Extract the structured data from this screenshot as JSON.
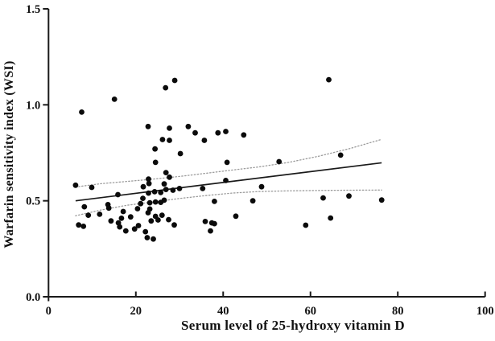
{
  "chart_data": {
    "type": "scatter",
    "title": "",
    "xlabel": "Serum level of 25-hydroxy vitamin D",
    "ylabel": "Warfarin sensitivity index (WSI)",
    "xlim": [
      0,
      100
    ],
    "ylim": [
      0.0,
      1.5
    ],
    "xticks": [
      0,
      20,
      40,
      60,
      80,
      100
    ],
    "xtick_labels": [
      "0",
      "20",
      "40",
      "60",
      "80",
      "100"
    ],
    "yticks": [
      0.0,
      0.5,
      1.0,
      1.5
    ],
    "ytick_labels": [
      "0.0",
      "0.5",
      "1.0",
      "1.5"
    ],
    "grid": false,
    "legend": "none",
    "marker": "filled-black-circle",
    "points": [
      [
        7.6,
        0.962
      ],
      [
        15.1,
        1.029
      ],
      [
        26.8,
        1.089
      ],
      [
        28.9,
        1.127
      ],
      [
        64.2,
        1.131
      ],
      [
        22.8,
        0.887
      ],
      [
        27.7,
        0.878
      ],
      [
        32.0,
        0.887
      ],
      [
        33.6,
        0.854
      ],
      [
        26.1,
        0.819
      ],
      [
        27.7,
        0.815
      ],
      [
        38.8,
        0.854
      ],
      [
        40.6,
        0.861
      ],
      [
        44.7,
        0.843
      ],
      [
        35.7,
        0.815
      ],
      [
        24.4,
        0.77
      ],
      [
        30.2,
        0.746
      ],
      [
        66.9,
        0.738
      ],
      [
        24.5,
        0.7
      ],
      [
        40.9,
        0.7
      ],
      [
        52.8,
        0.704
      ],
      [
        26.9,
        0.647
      ],
      [
        27.7,
        0.623
      ],
      [
        22.9,
        0.613
      ],
      [
        23.0,
        0.59
      ],
      [
        26.5,
        0.588
      ],
      [
        40.6,
        0.606
      ],
      [
        6.2,
        0.581
      ],
      [
        9.9,
        0.57
      ],
      [
        35.3,
        0.564
      ],
      [
        48.8,
        0.573
      ],
      [
        21.7,
        0.573
      ],
      [
        22.9,
        0.54
      ],
      [
        24.3,
        0.547
      ],
      [
        25.7,
        0.543
      ],
      [
        26.9,
        0.559
      ],
      [
        28.5,
        0.555
      ],
      [
        30.0,
        0.564
      ],
      [
        15.9,
        0.532
      ],
      [
        21.6,
        0.513
      ],
      [
        21.1,
        0.485
      ],
      [
        24.5,
        0.494
      ],
      [
        25.7,
        0.492
      ],
      [
        26.5,
        0.503
      ],
      [
        23.2,
        0.49
      ],
      [
        8.2,
        0.469
      ],
      [
        13.6,
        0.48
      ],
      [
        13.8,
        0.462
      ],
      [
        17.1,
        0.444
      ],
      [
        20.4,
        0.459
      ],
      [
        23.2,
        0.457
      ],
      [
        22.8,
        0.438
      ],
      [
        38.0,
        0.497
      ],
      [
        46.8,
        0.5
      ],
      [
        62.9,
        0.515
      ],
      [
        68.8,
        0.525
      ],
      [
        76.3,
        0.504
      ],
      [
        9.1,
        0.425
      ],
      [
        11.7,
        0.43
      ],
      [
        26.0,
        0.425
      ],
      [
        14.3,
        0.395
      ],
      [
        16.7,
        0.409
      ],
      [
        18.8,
        0.416
      ],
      [
        16.0,
        0.385
      ],
      [
        16.3,
        0.364
      ],
      [
        17.7,
        0.343
      ],
      [
        19.7,
        0.353
      ],
      [
        20.6,
        0.371
      ],
      [
        22.2,
        0.339
      ],
      [
        6.9,
        0.374
      ],
      [
        8.0,
        0.367
      ],
      [
        23.5,
        0.395
      ],
      [
        24.5,
        0.419
      ],
      [
        25.1,
        0.4
      ],
      [
        27.5,
        0.402
      ],
      [
        28.8,
        0.374
      ],
      [
        35.9,
        0.392
      ],
      [
        37.4,
        0.385
      ],
      [
        38.0,
        0.381
      ],
      [
        37.1,
        0.343
      ],
      [
        42.9,
        0.42
      ],
      [
        58.9,
        0.373
      ],
      [
        64.6,
        0.41
      ],
      [
        22.6,
        0.308
      ],
      [
        24.0,
        0.301
      ]
    ],
    "regression_line": {
      "x1": 6.2,
      "y1": 0.5,
      "x2": 76.3,
      "y2": 0.698
    },
    "ci_upper": [
      [
        6.2,
        0.572
      ],
      [
        12,
        0.589
      ],
      [
        18,
        0.601
      ],
      [
        24,
        0.613
      ],
      [
        30,
        0.627
      ],
      [
        36,
        0.643
      ],
      [
        42,
        0.66
      ],
      [
        48,
        0.676
      ],
      [
        55,
        0.7
      ],
      [
        62,
        0.733
      ],
      [
        69,
        0.772
      ],
      [
        76.3,
        0.82
      ]
    ],
    "ci_lower": [
      [
        6.2,
        0.422
      ],
      [
        12,
        0.452
      ],
      [
        18,
        0.477
      ],
      [
        24,
        0.494
      ],
      [
        30,
        0.512
      ],
      [
        36,
        0.527
      ],
      [
        42,
        0.54
      ],
      [
        48,
        0.548
      ],
      [
        55,
        0.552
      ],
      [
        62,
        0.554
      ],
      [
        69,
        0.555
      ],
      [
        76.3,
        0.556
      ]
    ],
    "colors": {
      "point": "#0b0b0b",
      "regression_line": "#1a1a1a",
      "ci_line": "#9b9b9b",
      "axis": "#1a1a1a",
      "text": "#111111",
      "background": "#ffffff"
    }
  }
}
